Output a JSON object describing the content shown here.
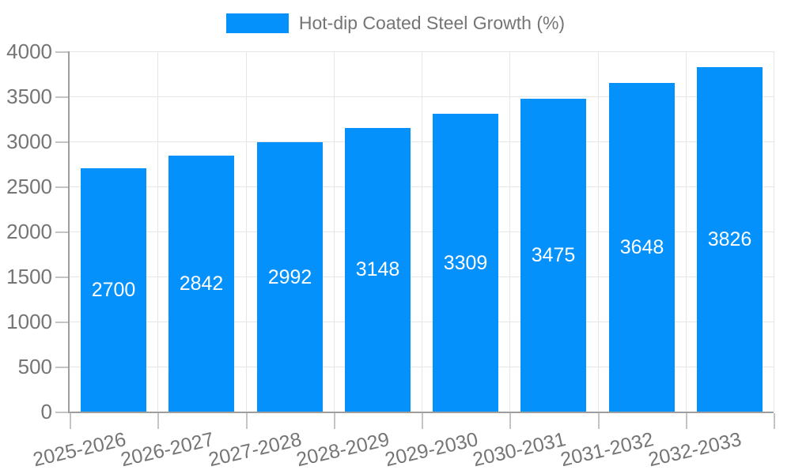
{
  "legend": {
    "label": "Hot-dip Coated Steel Growth (%)",
    "position": "top"
  },
  "colors": {
    "bar": "#0591fb",
    "grid": "#e6e6e6",
    "axis": "#9e9e9e",
    "tick": "#c4c4c4",
    "text": "#757575",
    "value_label": "#ffffff",
    "background": "#ffffff"
  },
  "chart_data": {
    "type": "bar",
    "title": "",
    "xlabel": "",
    "ylabel": "",
    "categories": [
      "2025-2026",
      "2026-2027",
      "2027-2028",
      "2028-2029",
      "2029-2030",
      "2030-2031",
      "2031-2032",
      "2032-2033"
    ],
    "series": [
      {
        "name": "Hot-dip Coated Steel Growth (%)",
        "values": [
          2700,
          2842,
          2992,
          3148,
          3309,
          3475,
          3648,
          3826
        ]
      }
    ],
    "value_labels_shown": true,
    "value_label_position": "center-of-bar",
    "ylim": [
      0,
      4000
    ],
    "yticks": [
      0,
      500,
      1000,
      1500,
      2000,
      2500,
      3000,
      3500,
      4000
    ],
    "grid": "horizontal-and-vertical",
    "plot_border": true,
    "x_tick_rotation_deg": -13,
    "legend_position": "top"
  }
}
